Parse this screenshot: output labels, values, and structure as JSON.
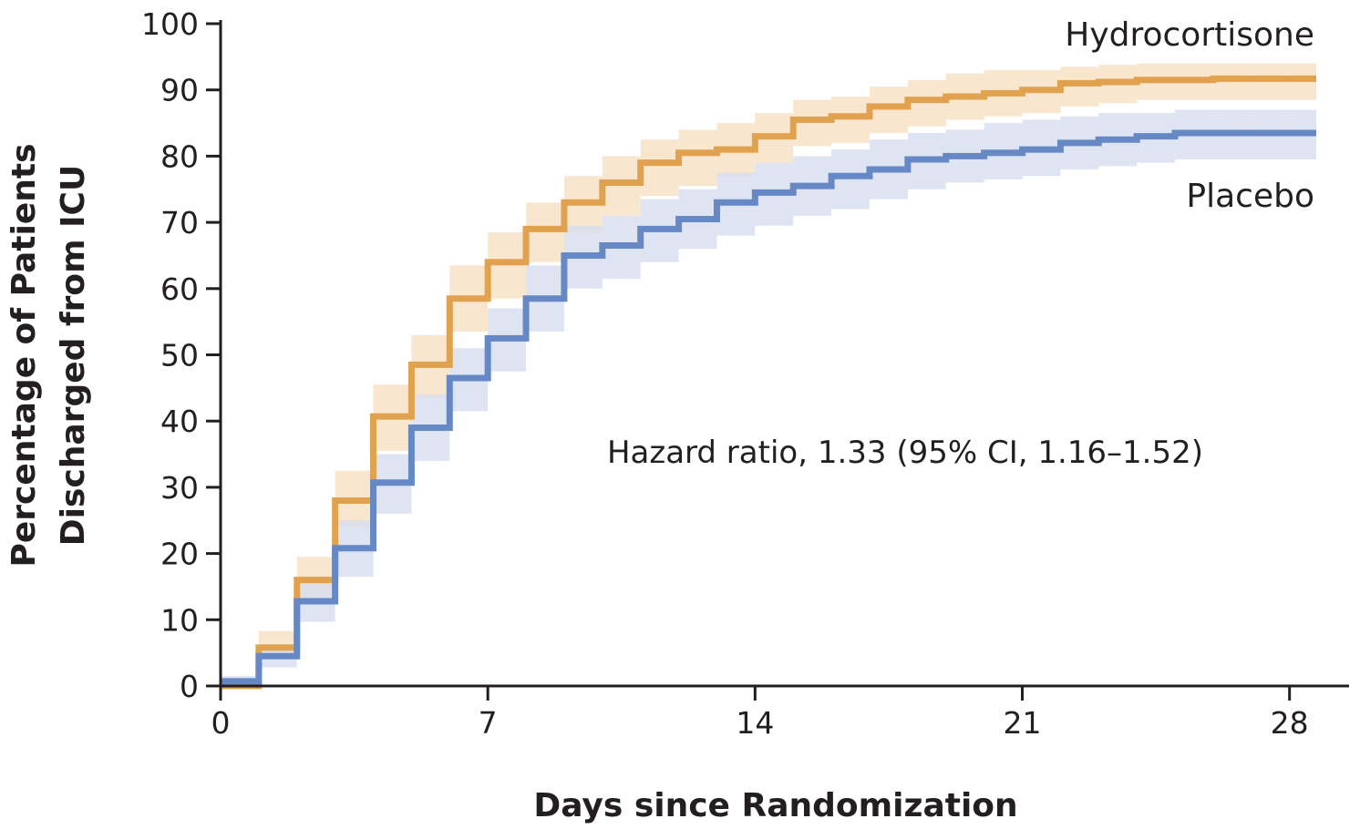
{
  "chart_data": {
    "type": "line",
    "step": true,
    "title": "",
    "xlabel": "Days since Randomization",
    "ylabel_lines": [
      "Percentage of Patients",
      "Discharged from ICU"
    ],
    "xlim": [
      0,
      28.7
    ],
    "ylim": [
      0,
      100
    ],
    "xticks": [
      0,
      7,
      14,
      21,
      28
    ],
    "yticks": [
      0,
      10,
      20,
      30,
      40,
      50,
      60,
      70,
      80,
      90,
      100
    ],
    "grid": false,
    "annotation": "Hazard ratio, 1.33 (95% CI, 1.16–1.52)",
    "x_end": 28.7,
    "series": [
      {
        "name": "Hydrocortisone",
        "color": "#e0a24e",
        "band_color": "#f7dfc0",
        "x": [
          0,
          1,
          2,
          3,
          4,
          5,
          6,
          7,
          8,
          9,
          10,
          11,
          12,
          13,
          14,
          15,
          16,
          17,
          18,
          19,
          20,
          21,
          22,
          23,
          24,
          25,
          26,
          27,
          28
        ],
        "y": [
          0,
          5.8,
          16,
          28,
          40.7,
          48.5,
          58.5,
          64,
          69,
          73,
          76,
          79,
          80.5,
          81,
          83,
          85.5,
          86,
          87.5,
          88.5,
          89,
          89.5,
          90,
          91,
          91.2,
          91.5,
          91.5,
          91.7,
          91.7,
          91.7
        ],
        "lower": [
          0,
          4,
          12.5,
          24,
          35.5,
          43.5,
          53.5,
          58.5,
          64,
          68.5,
          71,
          74,
          75.5,
          77,
          79,
          81.5,
          82,
          83.5,
          84.5,
          85.5,
          86,
          86.5,
          87.5,
          88,
          88.5,
          88.5,
          88.5,
          88.5,
          88.5
        ],
        "upper": [
          0,
          8.3,
          19.5,
          32.5,
          45.5,
          53,
          63.5,
          68.5,
          73,
          77,
          80,
          82.5,
          84,
          85,
          86.5,
          88.5,
          89,
          90.5,
          91.5,
          92.5,
          93,
          93,
          93.5,
          93.8,
          94,
          94,
          94,
          94,
          94
        ]
      },
      {
        "name": "Placebo",
        "color": "#6688c4",
        "band_color": "#d6ddf0",
        "x": [
          0,
          1,
          2,
          3,
          4,
          5,
          6,
          7,
          8,
          9,
          10,
          11,
          12,
          13,
          14,
          15,
          16,
          17,
          18,
          19,
          20,
          21,
          22,
          23,
          24,
          25,
          26,
          27,
          28
        ],
        "y": [
          0.7,
          4.5,
          12.8,
          20.8,
          30.7,
          39,
          46.5,
          52.5,
          58.5,
          65,
          66.5,
          69,
          70.5,
          73,
          74.5,
          75.5,
          77,
          78,
          79.5,
          80,
          80.5,
          81,
          82,
          82.5,
          83,
          83.5,
          83.5,
          83.5,
          83.5
        ],
        "lower": [
          0,
          2.8,
          9.7,
          16.5,
          26,
          34,
          41.5,
          47.5,
          53.5,
          60,
          61.5,
          64,
          66,
          68,
          69.5,
          71,
          72,
          73.5,
          75,
          76,
          76.5,
          77,
          78,
          78.5,
          79,
          79.5,
          79.5,
          79.5,
          79.5
        ],
        "upper": [
          1.5,
          6.3,
          16,
          25,
          35,
          44,
          51,
          57,
          63.5,
          69.5,
          71,
          73.5,
          75,
          77.5,
          79,
          80,
          81,
          82.5,
          83.5,
          84,
          85,
          85.5,
          86,
          86.5,
          86.5,
          87,
          87,
          87,
          87
        ]
      }
    ]
  }
}
